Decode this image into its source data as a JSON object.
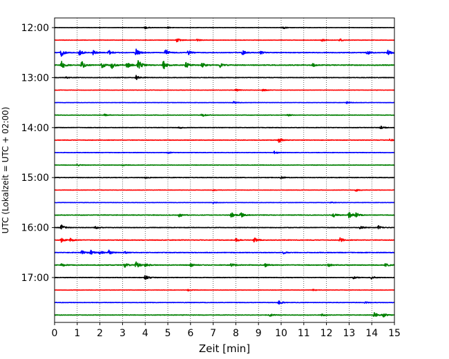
{
  "chart_data": {
    "type": "line",
    "title": "",
    "xlabel": "Zeit  [min]",
    "ylabel": "UTC (Lokalzeit = UTC + 02:00)",
    "xlim": [
      0,
      15
    ],
    "x_ticks": [
      0,
      1,
      2,
      3,
      4,
      5,
      6,
      7,
      8,
      9,
      10,
      11,
      12,
      13,
      14,
      15
    ],
    "y_tick_labels": [
      "12:00",
      "13:00",
      "14:00",
      "15:00",
      "16:00",
      "17:00"
    ],
    "grid": "vertical dotted lines at each minute",
    "trace_interval_min": 15,
    "color_cycle": [
      "#000000",
      "#ff0000",
      "#0000ff",
      "#008000"
    ],
    "traces": [
      {
        "time": "12:00",
        "color": "#000000",
        "noise": 0.18,
        "events": [
          [
            4.0,
            0.5
          ],
          [
            10.1,
            0.6
          ],
          [
            5.0,
            0.3
          ]
        ]
      },
      {
        "time": "12:15",
        "color": "#ff0000",
        "noise": 0.22,
        "events": [
          [
            5.4,
            1.0
          ],
          [
            6.3,
            0.5
          ],
          [
            11.8,
            0.5
          ],
          [
            12.6,
            0.6
          ]
        ]
      },
      {
        "time": "12:30",
        "color": "#0000ff",
        "noise": 0.35,
        "events": [
          [
            0.3,
            1.6
          ],
          [
            1.1,
            1.4
          ],
          [
            1.7,
            1.1
          ],
          [
            2.4,
            1.2
          ],
          [
            3.6,
            1.6
          ],
          [
            4.9,
            1.8
          ],
          [
            5.9,
            1.0
          ],
          [
            8.3,
            1.0
          ],
          [
            9.1,
            0.7
          ],
          [
            13.8,
            1.0
          ],
          [
            14.7,
            1.2
          ]
        ]
      },
      {
        "time": "12:45",
        "color": "#008000",
        "noise": 0.45,
        "events": [
          [
            0.3,
            2.2
          ],
          [
            1.2,
            1.8
          ],
          [
            2.1,
            1.5
          ],
          [
            2.5,
            1.9
          ],
          [
            3.2,
            1.5
          ],
          [
            3.7,
            2.4
          ],
          [
            4.8,
            2.0
          ],
          [
            5.8,
            1.3
          ],
          [
            6.5,
            1.2
          ],
          [
            7.3,
            1.0
          ],
          [
            11.4,
            0.7
          ]
        ]
      },
      {
        "time": "13:00",
        "color": "#000000",
        "noise": 0.28,
        "events": [
          [
            3.6,
            1.0
          ],
          [
            0.5,
            0.4
          ]
        ]
      },
      {
        "time": "13:15",
        "color": "#ff0000",
        "noise": 0.2,
        "events": [
          [
            8.0,
            0.6
          ],
          [
            9.2,
            0.6
          ]
        ]
      },
      {
        "time": "13:30",
        "color": "#0000ff",
        "noise": 0.2,
        "events": [
          [
            7.9,
            0.5
          ],
          [
            12.9,
            0.4
          ]
        ]
      },
      {
        "time": "13:45",
        "color": "#008000",
        "noise": 0.25,
        "events": [
          [
            6.5,
            0.9
          ],
          [
            2.2,
            0.4
          ],
          [
            10.3,
            0.4
          ]
        ]
      },
      {
        "time": "14:00",
        "color": "#000000",
        "noise": 0.28,
        "events": [
          [
            5.5,
            0.4
          ],
          [
            14.4,
            0.6
          ]
        ]
      },
      {
        "time": "14:15",
        "color": "#ff0000",
        "noise": 0.3,
        "events": [
          [
            9.9,
            1.2
          ],
          [
            14.8,
            0.5
          ]
        ]
      },
      {
        "time": "14:30",
        "color": "#0000ff",
        "noise": 0.25,
        "events": [
          [
            9.7,
            0.6
          ],
          [
            5.0,
            0.4
          ]
        ]
      },
      {
        "time": "14:45",
        "color": "#008000",
        "noise": 0.25,
        "events": [
          [
            1.0,
            0.4
          ],
          [
            3.0,
            0.3
          ]
        ]
      },
      {
        "time": "15:00",
        "color": "#000000",
        "noise": 0.3,
        "events": [
          [
            10.0,
            0.5
          ],
          [
            4.0,
            0.4
          ]
        ]
      },
      {
        "time": "15:15",
        "color": "#ff0000",
        "noise": 0.2,
        "events": [
          [
            13.3,
            0.6
          ],
          [
            7.0,
            0.3
          ]
        ]
      },
      {
        "time": "15:30",
        "color": "#0000ff",
        "noise": 0.2,
        "events": [
          [
            7.0,
            0.4
          ],
          [
            12.2,
            0.3
          ]
        ]
      },
      {
        "time": "15:45",
        "color": "#008000",
        "noise": 0.35,
        "events": [
          [
            5.5,
            0.9
          ],
          [
            7.8,
            1.2
          ],
          [
            8.2,
            1.3
          ],
          [
            12.3,
            1.0
          ],
          [
            13.0,
            1.4
          ],
          [
            13.3,
            1.1
          ]
        ]
      },
      {
        "time": "16:00",
        "color": "#000000",
        "noise": 0.3,
        "events": [
          [
            0.3,
            1.2
          ],
          [
            1.8,
            0.6
          ],
          [
            13.5,
            0.8
          ],
          [
            14.3,
            0.9
          ]
        ]
      },
      {
        "time": "16:15",
        "color": "#ff0000",
        "noise": 0.35,
        "events": [
          [
            0.3,
            0.9
          ],
          [
            0.7,
            0.8
          ],
          [
            8.0,
            0.8
          ],
          [
            8.8,
            1.2
          ],
          [
            12.6,
            1.0
          ]
        ]
      },
      {
        "time": "16:30",
        "color": "#0000ff",
        "noise": 0.35,
        "events": [
          [
            1.2,
            1.0
          ],
          [
            1.6,
            0.9
          ],
          [
            2.0,
            0.8
          ],
          [
            2.4,
            1.0
          ],
          [
            3.1,
            0.5
          ],
          [
            10.1,
            0.5
          ]
        ]
      },
      {
        "time": "16:45",
        "color": "#008000",
        "noise": 0.4,
        "events": [
          [
            0.3,
            0.8
          ],
          [
            3.1,
            1.0
          ],
          [
            3.6,
            1.4
          ],
          [
            4.0,
            1.0
          ],
          [
            6.0,
            0.8
          ],
          [
            7.8,
            0.7
          ],
          [
            9.3,
            0.7
          ],
          [
            12.1,
            0.6
          ],
          [
            14.6,
            0.8
          ]
        ]
      },
      {
        "time": "17:00",
        "color": "#000000",
        "noise": 0.3,
        "events": [
          [
            4.0,
            1.2
          ],
          [
            13.2,
            0.7
          ],
          [
            14.0,
            0.8
          ]
        ]
      },
      {
        "time": "17:15",
        "color": "#ff0000",
        "noise": 0.2,
        "events": [
          [
            5.9,
            0.4
          ],
          [
            11.4,
            0.3
          ]
        ]
      },
      {
        "time": "17:30",
        "color": "#0000ff",
        "noise": 0.25,
        "events": [
          [
            9.9,
            0.9
          ],
          [
            13.7,
            0.4
          ]
        ]
      },
      {
        "time": "17:45",
        "color": "#008000",
        "noise": 0.3,
        "events": [
          [
            9.5,
            0.7
          ],
          [
            14.1,
            1.2
          ],
          [
            14.5,
            1.0
          ],
          [
            11.8,
            0.4
          ]
        ]
      }
    ]
  }
}
